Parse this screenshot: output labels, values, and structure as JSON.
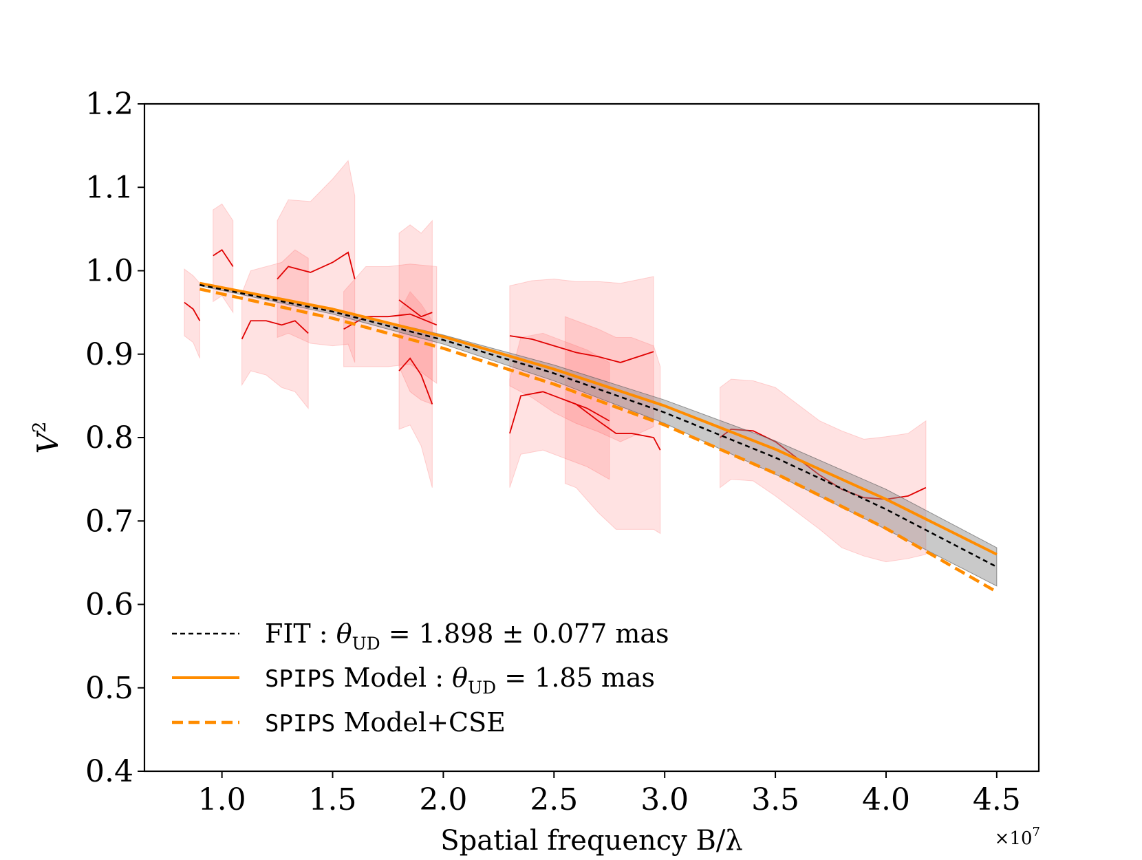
{
  "chart_data": {
    "type": "line",
    "xlabel": "Spatial frequency B/λ",
    "ylabel": "V",
    "ylabel_sup": "2",
    "x_offset_label": "×10",
    "x_offset_exp": "7",
    "x_scale": 10000000,
    "xlim": [
      0.65,
      4.69
    ],
    "ylim": [
      0.4,
      1.2
    ],
    "xticks": [
      1.0,
      1.5,
      2.0,
      2.5,
      3.0,
      3.5,
      4.0,
      4.5
    ],
    "xtick_labels": [
      "1.0",
      "1.5",
      "2.0",
      "2.5",
      "3.0",
      "3.5",
      "4.0",
      "4.5"
    ],
    "yticks": [
      0.4,
      0.5,
      0.6,
      0.7,
      0.8,
      0.9,
      1.0,
      1.1,
      1.2
    ],
    "ytick_labels": [
      "0.4",
      "0.5",
      "0.6",
      "0.7",
      "0.8",
      "0.9",
      "1.0",
      "1.1",
      "1.2"
    ],
    "grid": false,
    "legend_position": "lower-left",
    "series": [
      {
        "name": "FIT : θUD = 1.898 ± 0.077 mas",
        "style": "dashed-thin",
        "color": "#000000",
        "x": [
          0.9,
          1.5,
          2.0,
          2.5,
          3.0,
          3.5,
          4.0,
          4.5
        ],
        "y": [
          0.983,
          0.951,
          0.917,
          0.877,
          0.83,
          0.776,
          0.714,
          0.645
        ],
        "band_upper": [
          0.984,
          0.954,
          0.923,
          0.887,
          0.845,
          0.796,
          0.738,
          0.668
        ],
        "band_lower": [
          0.982,
          0.948,
          0.912,
          0.868,
          0.817,
          0.756,
          0.69,
          0.622
        ],
        "band_color": "#888888"
      },
      {
        "name": "SPIPS Model : θUD = 1.85 mas",
        "style": "solid",
        "color": "#ff8c00",
        "x": [
          0.9,
          1.5,
          2.0,
          2.5,
          3.0,
          3.5,
          4.0,
          4.5
        ],
        "y": [
          0.985,
          0.954,
          0.921,
          0.882,
          0.838,
          0.786,
          0.726,
          0.66
        ]
      },
      {
        "name": "SPIPS Model+CSE",
        "style": "dashed-thick",
        "color": "#ff8c00",
        "x": [
          0.9,
          1.5,
          2.0,
          2.5,
          3.0,
          3.5,
          4.0,
          4.5
        ],
        "y": [
          0.978,
          0.943,
          0.907,
          0.864,
          0.815,
          0.757,
          0.691,
          0.615
        ]
      }
    ],
    "observations": [
      {
        "x": [
          0.83,
          0.87,
          0.9
        ],
        "y": [
          0.962,
          0.954,
          0.94
        ],
        "err": [
          0.04,
          0.04,
          0.045
        ]
      },
      {
        "x": [
          0.96,
          1.0,
          1.05
        ],
        "y": [
          1.018,
          1.025,
          1.005
        ],
        "err": [
          0.055,
          0.055,
          0.055
        ]
      },
      {
        "x": [
          1.09,
          1.13,
          1.2,
          1.27,
          1.33,
          1.39
        ],
        "y": [
          0.918,
          0.94,
          0.94,
          0.935,
          0.94,
          0.925
        ],
        "err": [
          0.055,
          0.06,
          0.065,
          0.075,
          0.085,
          0.09
        ]
      },
      {
        "x": [
          1.25,
          1.3,
          1.4,
          1.5,
          1.57,
          1.6
        ],
        "y": [
          0.99,
          1.005,
          0.998,
          1.01,
          1.022,
          0.99
        ],
        "err": [
          0.07,
          0.08,
          0.085,
          0.1,
          0.11,
          0.1
        ]
      },
      {
        "x": [
          1.55,
          1.65,
          1.75,
          1.85,
          1.97
        ],
        "y": [
          0.93,
          0.945,
          0.945,
          0.948,
          0.935
        ],
        "err": [
          0.045,
          0.06,
          0.06,
          0.06,
          0.07
        ]
      },
      {
        "x": [
          1.8,
          1.85,
          1.9,
          1.95
        ],
        "y": [
          0.965,
          0.955,
          0.945,
          0.95
        ],
        "err": [
          0.08,
          0.1,
          0.1,
          0.11
        ]
      },
      {
        "x": [
          1.8,
          1.85,
          1.9,
          1.95
        ],
        "y": [
          0.88,
          0.895,
          0.875,
          0.84
        ],
        "err": [
          0.07,
          0.08,
          0.085,
          0.1
        ]
      },
      {
        "x": [
          2.3,
          2.4,
          2.5,
          2.6,
          2.7,
          2.8,
          2.95
        ],
        "y": [
          0.922,
          0.918,
          0.91,
          0.902,
          0.897,
          0.89,
          0.903
        ],
        "err": [
          0.06,
          0.07,
          0.08,
          0.085,
          0.09,
          0.095,
          0.09
        ]
      },
      {
        "x": [
          2.3,
          2.35,
          2.45,
          2.55,
          2.65,
          2.75
        ],
        "y": [
          0.805,
          0.85,
          0.855,
          0.845,
          0.835,
          0.82
        ],
        "err": [
          0.065,
          0.07,
          0.07,
          0.07,
          0.07,
          0.07
        ]
      },
      {
        "x": [
          2.55,
          2.6,
          2.7,
          2.78,
          2.85,
          2.95,
          2.98
        ],
        "y": [
          0.845,
          0.84,
          0.82,
          0.805,
          0.805,
          0.8,
          0.785
        ],
        "err": [
          0.1,
          0.1,
          0.11,
          0.115,
          0.115,
          0.11,
          0.1
        ]
      },
      {
        "x": [
          3.25,
          3.3,
          3.4,
          3.5,
          3.6,
          3.7,
          3.8,
          3.9,
          4.0,
          4.1,
          4.18
        ],
        "y": [
          0.8,
          0.81,
          0.808,
          0.795,
          0.775,
          0.755,
          0.738,
          0.728,
          0.726,
          0.73,
          0.74
        ],
        "err": [
          0.06,
          0.06,
          0.06,
          0.065,
          0.065,
          0.065,
          0.07,
          0.07,
          0.075,
          0.075,
          0.08
        ]
      }
    ]
  }
}
